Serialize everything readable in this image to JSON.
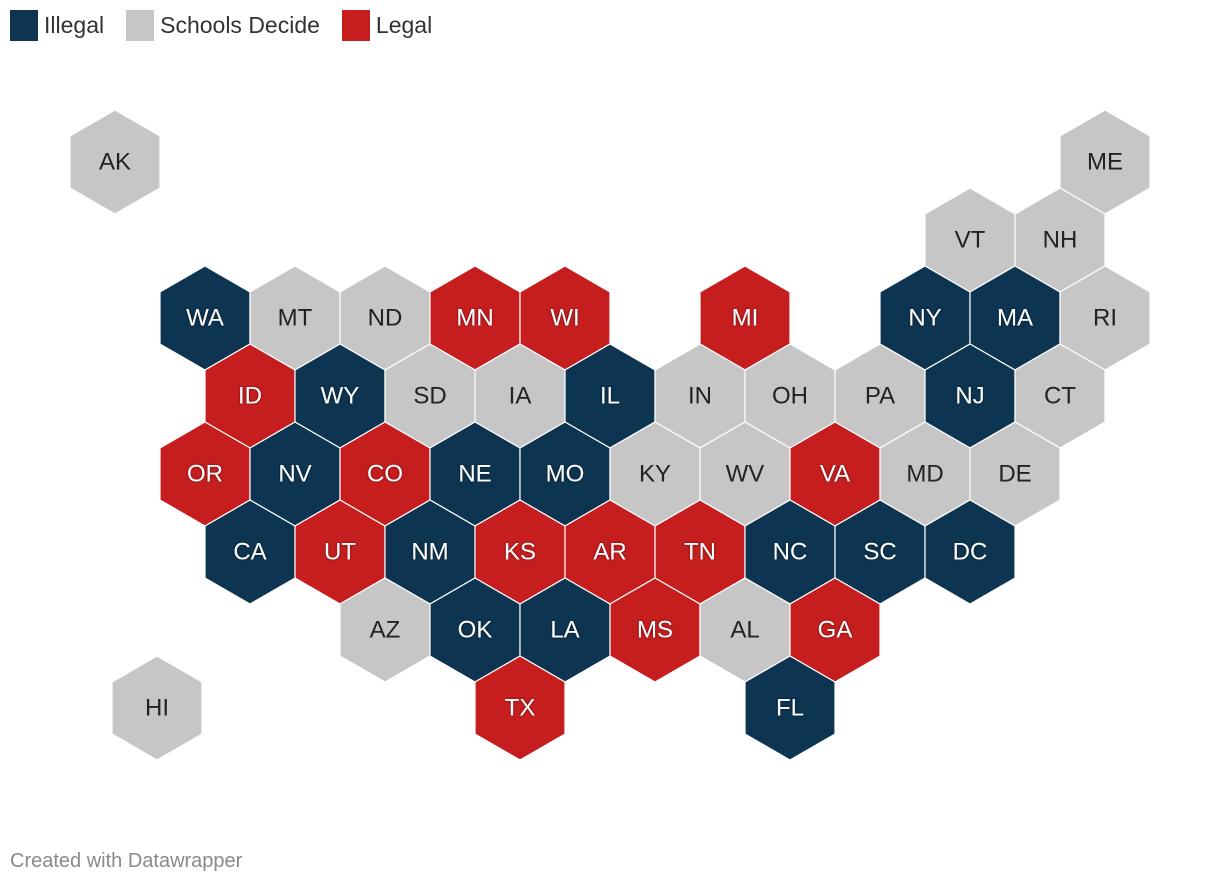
{
  "legend": {
    "items": [
      {
        "key": "illegal",
        "label": "Illegal",
        "color": "#0d3450"
      },
      {
        "key": "schools",
        "label": "Schools Decide",
        "color": "#c6c6c6"
      },
      {
        "key": "legal",
        "label": "Legal",
        "color": "#c61e1f"
      }
    ]
  },
  "footer": {
    "credit": "Created with Datawrapper"
  },
  "chart_data": {
    "type": "hex-tile-map",
    "categories": [
      "Illegal",
      "Schools Decide",
      "Legal"
    ],
    "states": [
      {
        "abbr": "AK",
        "status": "schools",
        "row": 0,
        "col": 0
      },
      {
        "abbr": "ME",
        "status": "schools",
        "row": 0,
        "col": 11
      },
      {
        "abbr": "VT",
        "status": "schools",
        "row": 1,
        "col": 9
      },
      {
        "abbr": "NH",
        "status": "schools",
        "row": 1,
        "col": 10
      },
      {
        "abbr": "WA",
        "status": "illegal",
        "row": 2,
        "col": 1
      },
      {
        "abbr": "MT",
        "status": "schools",
        "row": 2,
        "col": 2
      },
      {
        "abbr": "ND",
        "status": "schools",
        "row": 2,
        "col": 3
      },
      {
        "abbr": "MN",
        "status": "legal",
        "row": 2,
        "col": 4
      },
      {
        "abbr": "WI",
        "status": "legal",
        "row": 2,
        "col": 5
      },
      {
        "abbr": "MI",
        "status": "legal",
        "row": 2,
        "col": 7
      },
      {
        "abbr": "NY",
        "status": "illegal",
        "row": 2,
        "col": 9
      },
      {
        "abbr": "MA",
        "status": "illegal",
        "row": 2,
        "col": 10
      },
      {
        "abbr": "RI",
        "status": "schools",
        "row": 2,
        "col": 11
      },
      {
        "abbr": "ID",
        "status": "legal",
        "row": 3,
        "col": 1
      },
      {
        "abbr": "WY",
        "status": "illegal",
        "row": 3,
        "col": 2
      },
      {
        "abbr": "SD",
        "status": "schools",
        "row": 3,
        "col": 3
      },
      {
        "abbr": "IA",
        "status": "schools",
        "row": 3,
        "col": 4
      },
      {
        "abbr": "IL",
        "status": "illegal",
        "row": 3,
        "col": 5
      },
      {
        "abbr": "IN",
        "status": "schools",
        "row": 3,
        "col": 6
      },
      {
        "abbr": "OH",
        "status": "schools",
        "row": 3,
        "col": 7
      },
      {
        "abbr": "PA",
        "status": "schools",
        "row": 3,
        "col": 8
      },
      {
        "abbr": "NJ",
        "status": "illegal",
        "row": 3,
        "col": 9
      },
      {
        "abbr": "CT",
        "status": "schools",
        "row": 3,
        "col": 10
      },
      {
        "abbr": "OR",
        "status": "legal",
        "row": 4,
        "col": 1
      },
      {
        "abbr": "NV",
        "status": "illegal",
        "row": 4,
        "col": 2
      },
      {
        "abbr": "CO",
        "status": "legal",
        "row": 4,
        "col": 3
      },
      {
        "abbr": "NE",
        "status": "illegal",
        "row": 4,
        "col": 4
      },
      {
        "abbr": "MO",
        "status": "illegal",
        "row": 4,
        "col": 5
      },
      {
        "abbr": "KY",
        "status": "schools",
        "row": 4,
        "col": 6
      },
      {
        "abbr": "WV",
        "status": "schools",
        "row": 4,
        "col": 7
      },
      {
        "abbr": "VA",
        "status": "legal",
        "row": 4,
        "col": 8
      },
      {
        "abbr": "MD",
        "status": "schools",
        "row": 4,
        "col": 9
      },
      {
        "abbr": "DE",
        "status": "schools",
        "row": 4,
        "col": 10
      },
      {
        "abbr": "CA",
        "status": "illegal",
        "row": 5,
        "col": 1
      },
      {
        "abbr": "UT",
        "status": "legal",
        "row": 5,
        "col": 2
      },
      {
        "abbr": "NM",
        "status": "illegal",
        "row": 5,
        "col": 3
      },
      {
        "abbr": "KS",
        "status": "legal",
        "row": 5,
        "col": 4
      },
      {
        "abbr": "AR",
        "status": "legal",
        "row": 5,
        "col": 5
      },
      {
        "abbr": "TN",
        "status": "legal",
        "row": 5,
        "col": 6
      },
      {
        "abbr": "NC",
        "status": "illegal",
        "row": 5,
        "col": 7
      },
      {
        "abbr": "SC",
        "status": "illegal",
        "row": 5,
        "col": 8
      },
      {
        "abbr": "DC",
        "status": "illegal",
        "row": 5,
        "col": 9
      },
      {
        "abbr": "AZ",
        "status": "schools",
        "row": 6,
        "col": 3
      },
      {
        "abbr": "OK",
        "status": "illegal",
        "row": 6,
        "col": 4
      },
      {
        "abbr": "LA",
        "status": "illegal",
        "row": 6,
        "col": 5
      },
      {
        "abbr": "MS",
        "status": "legal",
        "row": 6,
        "col": 6
      },
      {
        "abbr": "AL",
        "status": "schools",
        "row": 6,
        "col": 7
      },
      {
        "abbr": "GA",
        "status": "legal",
        "row": 6,
        "col": 8
      },
      {
        "abbr": "HI",
        "status": "schools",
        "row": 7,
        "col": 0
      },
      {
        "abbr": "TX",
        "status": "legal",
        "row": 7,
        "col": 4
      },
      {
        "abbr": "FL",
        "status": "illegal",
        "row": 7,
        "col": 7
      }
    ]
  }
}
